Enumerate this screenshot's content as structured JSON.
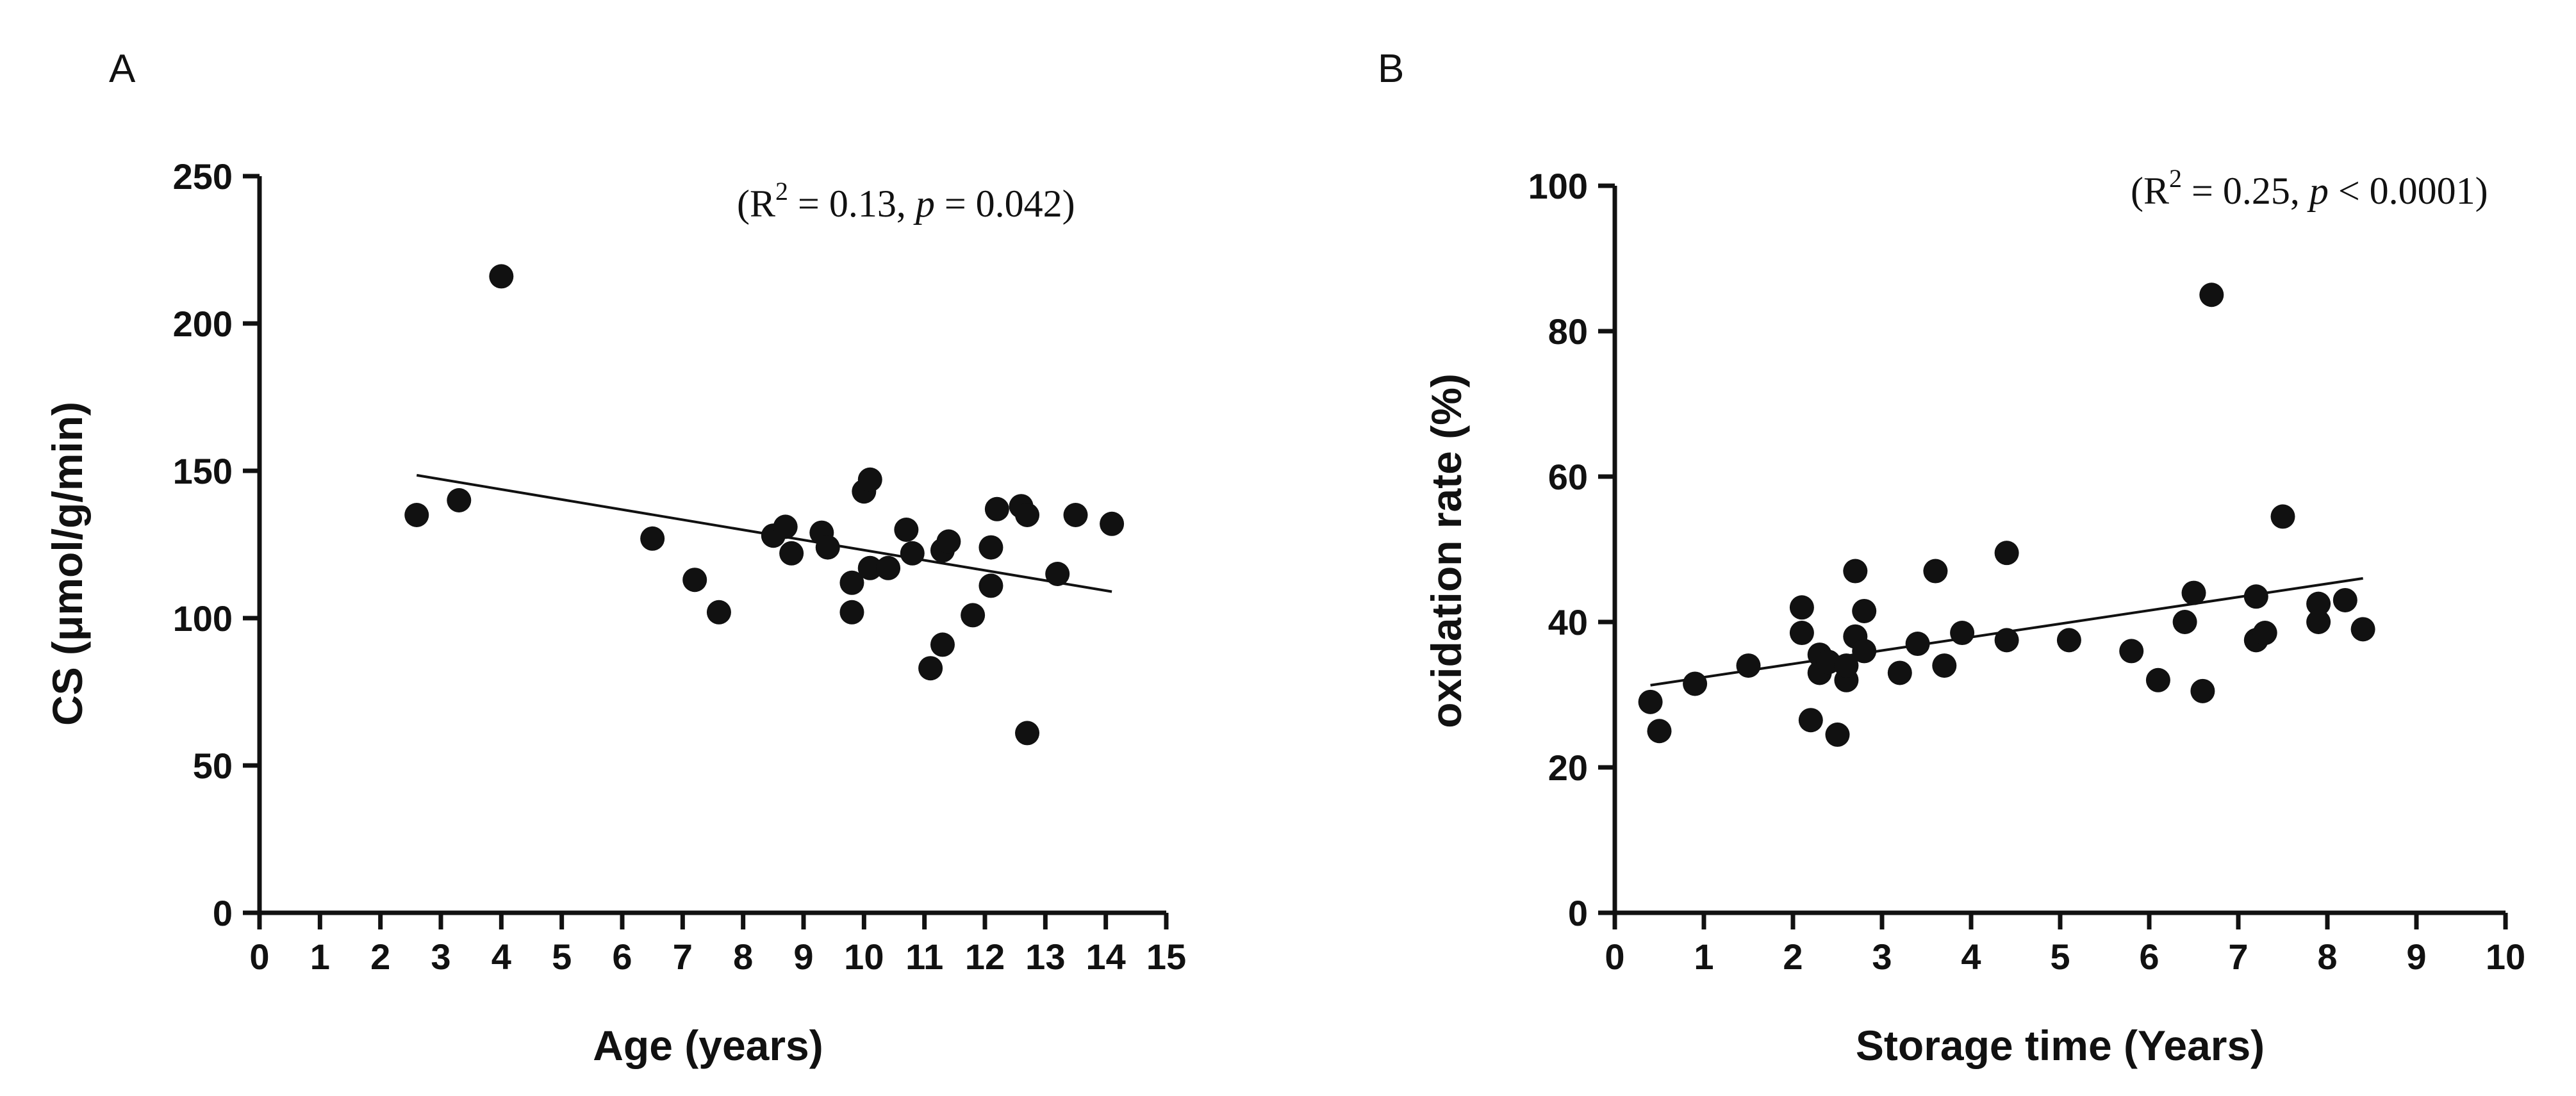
{
  "chart_data": [
    {
      "type": "scatter",
      "panel": "A",
      "title": "",
      "xlabel": "Age (years)",
      "ylabel": "CS (μmol/g/min)",
      "xlim": [
        0,
        15
      ],
      "ylim": [
        0,
        250
      ],
      "xticks": [
        "0",
        "1",
        "2",
        "3",
        "4",
        "5",
        "6",
        "7",
        "8",
        "9",
        "10",
        "11",
        "12",
        "13",
        "14",
        "15"
      ],
      "yticks": [
        "0",
        "50",
        "100",
        "150",
        "200",
        "250"
      ],
      "annotation": {
        "pre": "(R",
        "sup": "2",
        "mid": " = 0.13, ",
        "p": "p",
        "post": " = 0.042)"
      },
      "fit_line": {
        "x": [
          2.6,
          14.1
        ],
        "y": [
          148.5,
          109
        ]
      },
      "points": [
        {
          "x": 2.6,
          "y": 135
        },
        {
          "x": 3.3,
          "y": 140
        },
        {
          "x": 4.0,
          "y": 216
        },
        {
          "x": 6.5,
          "y": 127
        },
        {
          "x": 7.2,
          "y": 113
        },
        {
          "x": 7.6,
          "y": 102
        },
        {
          "x": 8.5,
          "y": 128
        },
        {
          "x": 8.7,
          "y": 131
        },
        {
          "x": 8.8,
          "y": 122
        },
        {
          "x": 9.3,
          "y": 129
        },
        {
          "x": 9.4,
          "y": 124
        },
        {
          "x": 9.8,
          "y": 112
        },
        {
          "x": 9.8,
          "y": 102
        },
        {
          "x": 10.0,
          "y": 143
        },
        {
          "x": 10.1,
          "y": 147
        },
        {
          "x": 10.1,
          "y": 117
        },
        {
          "x": 10.4,
          "y": 117
        },
        {
          "x": 10.7,
          "y": 130
        },
        {
          "x": 10.8,
          "y": 122
        },
        {
          "x": 11.1,
          "y": 83
        },
        {
          "x": 11.3,
          "y": 123
        },
        {
          "x": 11.3,
          "y": 91
        },
        {
          "x": 11.4,
          "y": 126
        },
        {
          "x": 11.8,
          "y": 101
        },
        {
          "x": 12.1,
          "y": 124
        },
        {
          "x": 12.1,
          "y": 111
        },
        {
          "x": 12.2,
          "y": 137
        },
        {
          "x": 12.6,
          "y": 138
        },
        {
          "x": 12.7,
          "y": 135
        },
        {
          "x": 12.7,
          "y": 61
        },
        {
          "x": 13.2,
          "y": 115
        },
        {
          "x": 13.5,
          "y": 135
        },
        {
          "x": 14.1,
          "y": 132
        }
      ]
    },
    {
      "type": "scatter",
      "panel": "B",
      "title": "",
      "xlabel": "Storage time (Years)",
      "ylabel": "oxidation rate (%)",
      "xlim": [
        0,
        10
      ],
      "ylim": [
        0,
        100
      ],
      "xticks": [
        "0",
        "1",
        "2",
        "3",
        "4",
        "5",
        "6",
        "7",
        "8",
        "9",
        "10"
      ],
      "yticks": [
        "0",
        "20",
        "40",
        "60",
        "80",
        "100"
      ],
      "annotation": {
        "pre": "(R",
        "sup": "2",
        "mid": " = 0.25,  ",
        "p": "p",
        "post": " < 0.0001)"
      },
      "fit_line": {
        "x": [
          0.4,
          8.4
        ],
        "y": [
          31.3,
          46
        ]
      },
      "points": [
        {
          "x": 0.4,
          "y": 29
        },
        {
          "x": 0.5,
          "y": 25
        },
        {
          "x": 0.9,
          "y": 31.5
        },
        {
          "x": 1.5,
          "y": 34
        },
        {
          "x": 2.1,
          "y": 42
        },
        {
          "x": 2.1,
          "y": 38.5
        },
        {
          "x": 2.2,
          "y": 26.5
        },
        {
          "x": 2.3,
          "y": 35.5
        },
        {
          "x": 2.3,
          "y": 33
        },
        {
          "x": 2.4,
          "y": 34.5
        },
        {
          "x": 2.5,
          "y": 24.5
        },
        {
          "x": 2.6,
          "y": 32
        },
        {
          "x": 2.6,
          "y": 34
        },
        {
          "x": 2.7,
          "y": 47
        },
        {
          "x": 2.7,
          "y": 38
        },
        {
          "x": 2.8,
          "y": 41.5
        },
        {
          "x": 2.8,
          "y": 36
        },
        {
          "x": 3.2,
          "y": 33
        },
        {
          "x": 3.4,
          "y": 37
        },
        {
          "x": 3.6,
          "y": 47
        },
        {
          "x": 3.7,
          "y": 34
        },
        {
          "x": 3.9,
          "y": 38.5
        },
        {
          "x": 4.4,
          "y": 49.5
        },
        {
          "x": 4.4,
          "y": 37.5
        },
        {
          "x": 5.1,
          "y": 37.5
        },
        {
          "x": 5.8,
          "y": 36
        },
        {
          "x": 6.1,
          "y": 32
        },
        {
          "x": 6.4,
          "y": 40
        },
        {
          "x": 6.5,
          "y": 44
        },
        {
          "x": 6.6,
          "y": 30.5
        },
        {
          "x": 6.7,
          "y": 85
        },
        {
          "x": 7.2,
          "y": 43.5
        },
        {
          "x": 7.2,
          "y": 37.5
        },
        {
          "x": 7.3,
          "y": 38.5
        },
        {
          "x": 7.5,
          "y": 54.5
        },
        {
          "x": 7.9,
          "y": 42.5
        },
        {
          "x": 7.9,
          "y": 40
        },
        {
          "x": 8.2,
          "y": 43
        },
        {
          "x": 8.4,
          "y": 39
        }
      ]
    }
  ]
}
